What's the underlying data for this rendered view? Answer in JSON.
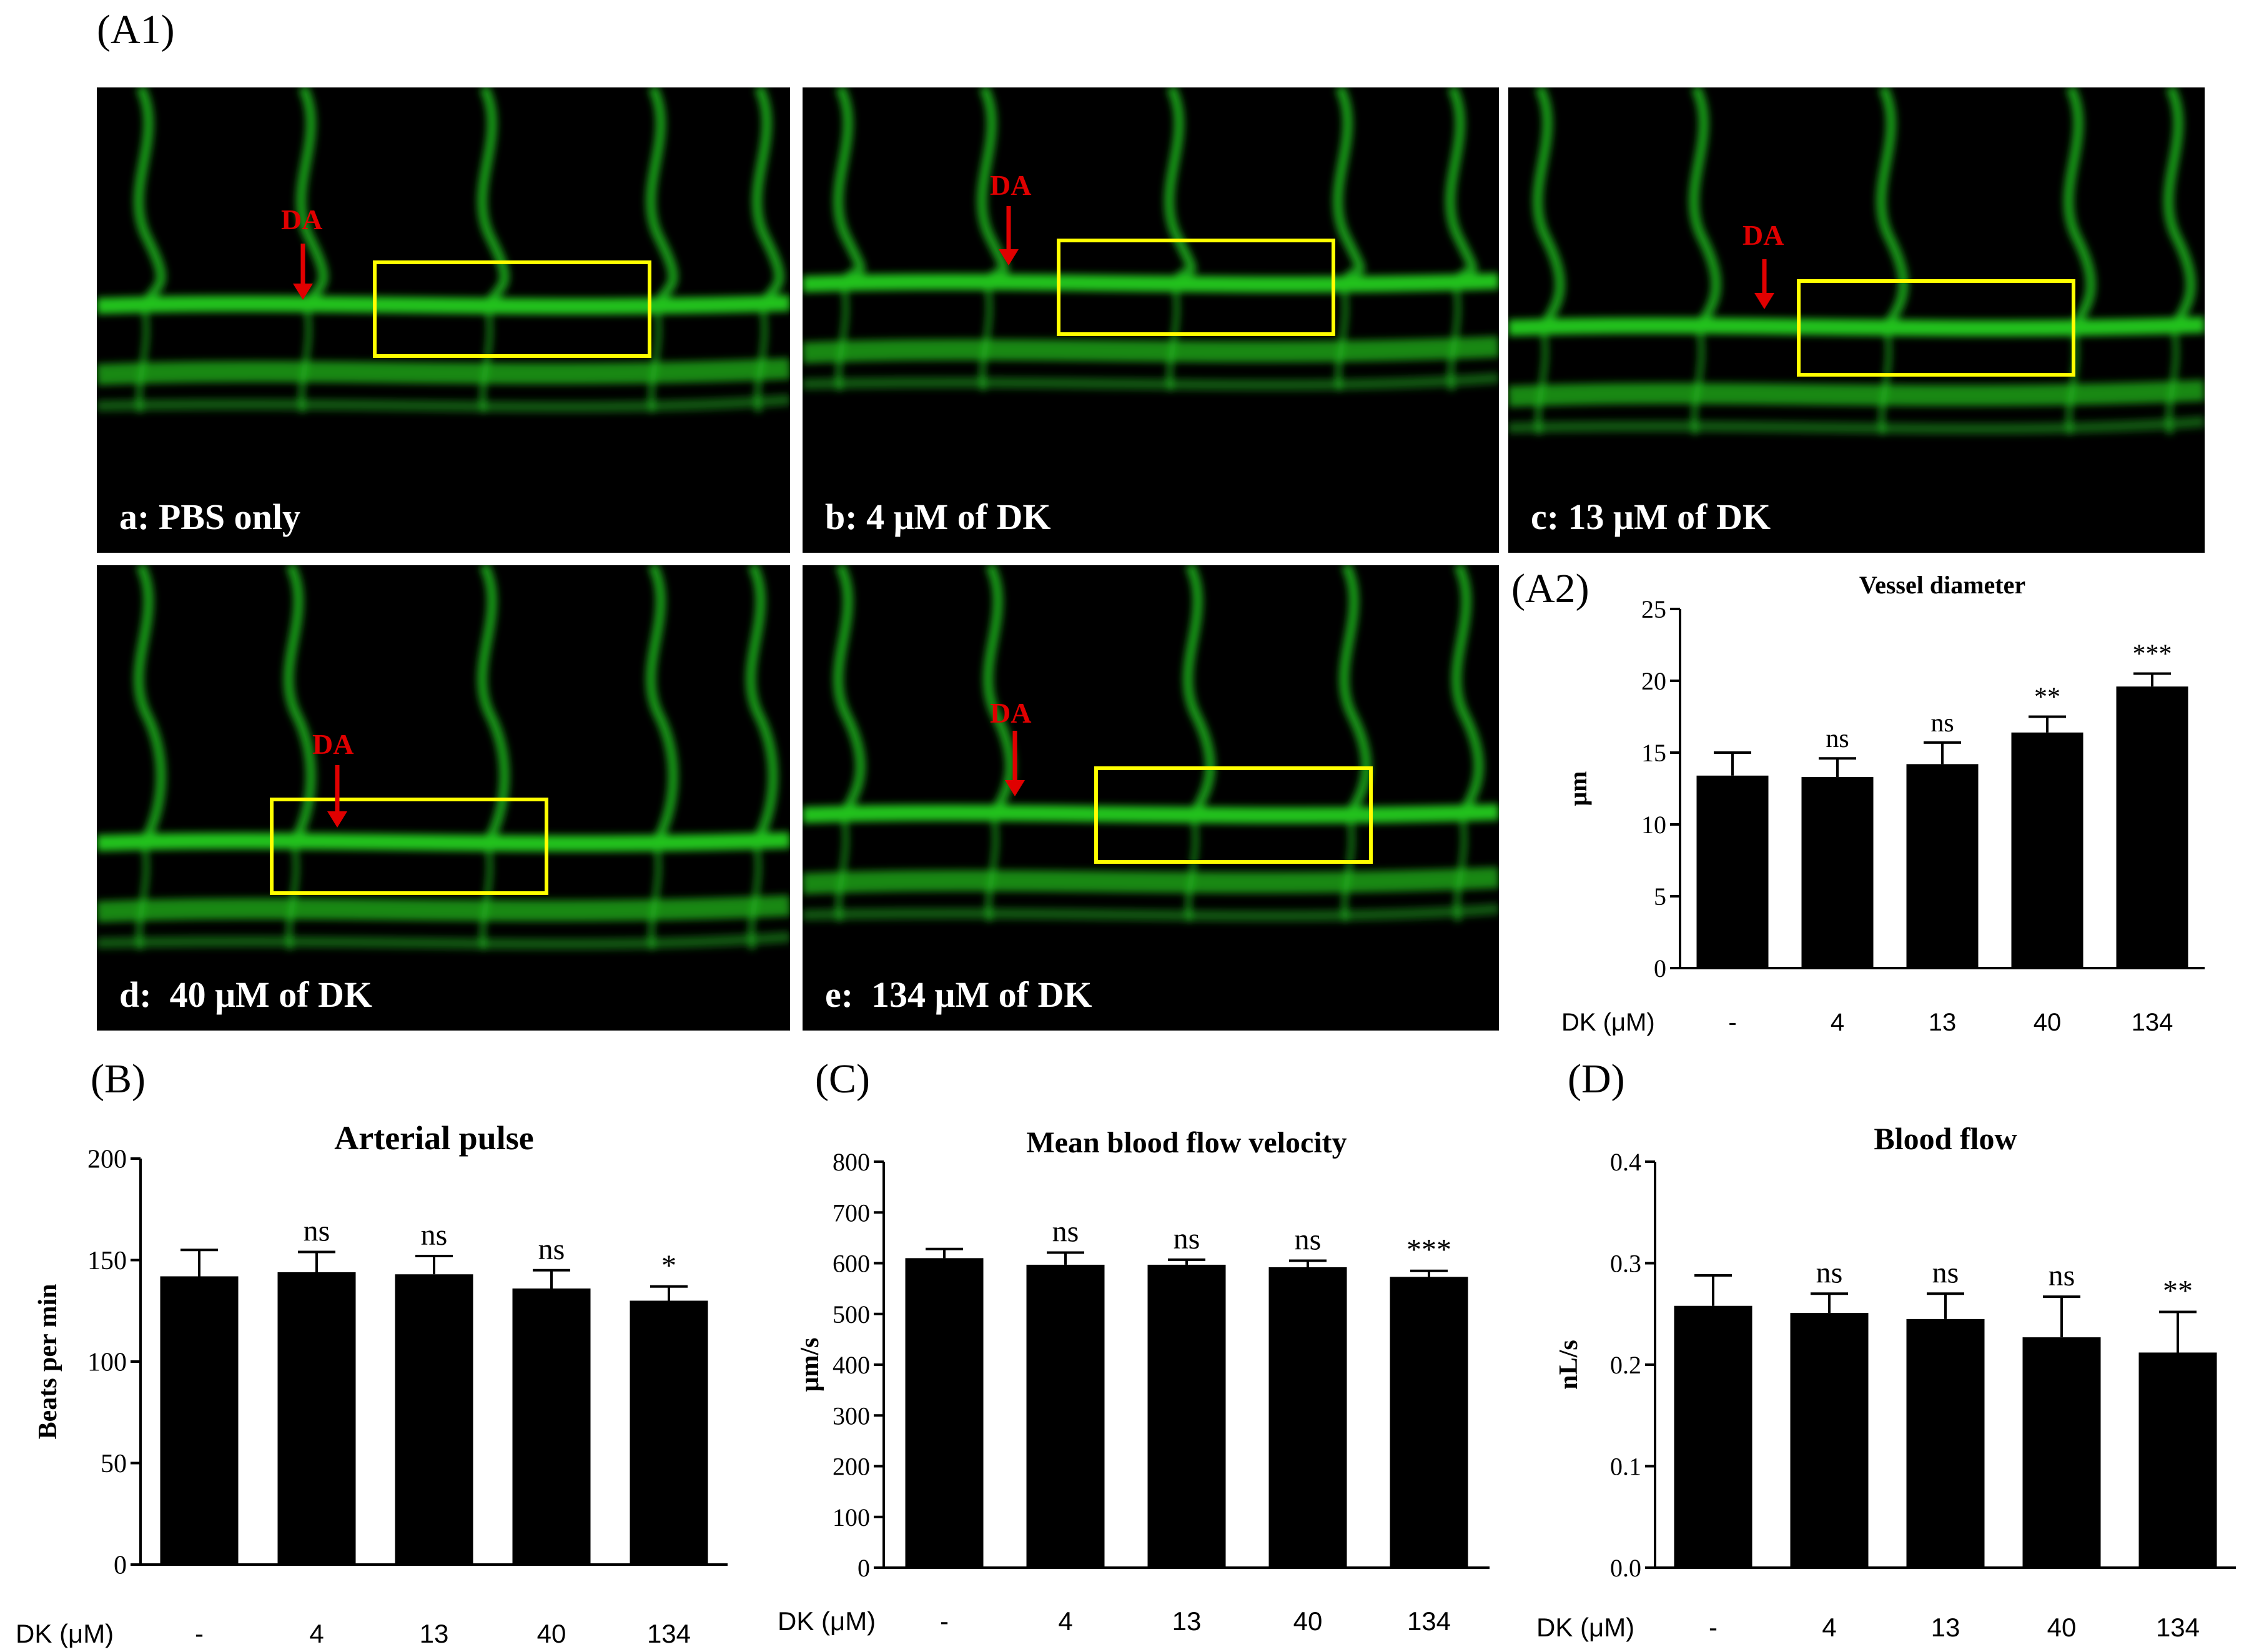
{
  "figure": {
    "panel_labels": {
      "a1": "(A1)",
      "a2": "(A2)",
      "b": "(B)",
      "c": "(C)",
      "d": "(D)"
    },
    "micrographs": [
      {
        "id": "a",
        "caption": "a: PBS only",
        "arrow_label": "DA"
      },
      {
        "id": "b",
        "caption": "b: 4 μM of DK",
        "arrow_label": "DA"
      },
      {
        "id": "c",
        "caption": "c: 13 μM of DK",
        "arrow_label": "DA"
      },
      {
        "id": "d",
        "caption": "d:  40 μM of DK",
        "arrow_label": "DA"
      },
      {
        "id": "e",
        "caption": "e:  134 μM of DK",
        "arrow_label": "DA"
      }
    ],
    "colors": {
      "vessel": "#22c21f",
      "highlight_box": "#ffff00",
      "arrow": "#e00000",
      "bar": "#000000"
    }
  },
  "chart_data": [
    {
      "id": "A2",
      "type": "bar",
      "title": "Vessel diameter",
      "xlabel": "DK (μM)",
      "ylabel": "μm",
      "categories": [
        "-",
        "4",
        "13",
        "40",
        "134"
      ],
      "values": [
        13.4,
        13.3,
        14.2,
        16.4,
        19.6
      ],
      "errors": [
        1.6,
        1.3,
        1.5,
        1.1,
        0.9
      ],
      "annotations": [
        "",
        "ns",
        "ns",
        "**",
        "***"
      ],
      "ylim": [
        0,
        25
      ],
      "yticks": [
        "0",
        "5",
        "10",
        "15",
        "20",
        "25"
      ],
      "ytick_values": [
        0,
        5,
        10,
        15,
        20,
        25
      ]
    },
    {
      "id": "B",
      "type": "bar",
      "title": "Arterial pulse",
      "xlabel": "DK (μM)",
      "ylabel": "Beats per min",
      "categories": [
        "-",
        "4",
        "13",
        "40",
        "134"
      ],
      "values": [
        142,
        144,
        143,
        136,
        130
      ],
      "errors": [
        13,
        10,
        9,
        9,
        7
      ],
      "annotations": [
        "",
        "ns",
        "ns",
        "ns",
        "*"
      ],
      "ylim": [
        0,
        200
      ],
      "yticks": [
        "0",
        "50",
        "100",
        "150",
        "200"
      ],
      "ytick_values": [
        0,
        50,
        100,
        150,
        200
      ]
    },
    {
      "id": "C",
      "type": "bar",
      "title": "Mean blood flow velocity",
      "xlabel": "DK (μM)",
      "ylabel": "μm/s",
      "categories": [
        "-",
        "4",
        "13",
        "40",
        "134"
      ],
      "values": [
        610,
        597,
        597,
        592,
        573
      ],
      "errors": [
        18,
        24,
        10,
        13,
        12
      ],
      "annotations": [
        "",
        "ns",
        "ns",
        "ns",
        "***"
      ],
      "ylim": [
        0,
        800
      ],
      "yticks": [
        "0",
        "100",
        "200",
        "300",
        "400",
        "500",
        "600",
        "700",
        "800"
      ],
      "ytick_values": [
        0,
        100,
        200,
        300,
        400,
        500,
        600,
        700,
        800
      ]
    },
    {
      "id": "D",
      "type": "bar",
      "title": "Blood flow",
      "xlabel": "DK (μM)",
      "ylabel": "nL/s",
      "categories": [
        "-",
        "4",
        "13",
        "40",
        "134"
      ],
      "values": [
        0.258,
        0.251,
        0.245,
        0.227,
        0.212
      ],
      "errors": [
        0.03,
        0.019,
        0.025,
        0.04,
        0.04
      ],
      "annotations": [
        "",
        "ns",
        "ns",
        "ns",
        "**"
      ],
      "ylim": [
        0,
        0.4
      ],
      "yticks": [
        "0.0",
        "0.1",
        "0.2",
        "0.3",
        "0.4"
      ],
      "ytick_values": [
        0,
        0.1,
        0.2,
        0.3,
        0.4
      ]
    }
  ]
}
